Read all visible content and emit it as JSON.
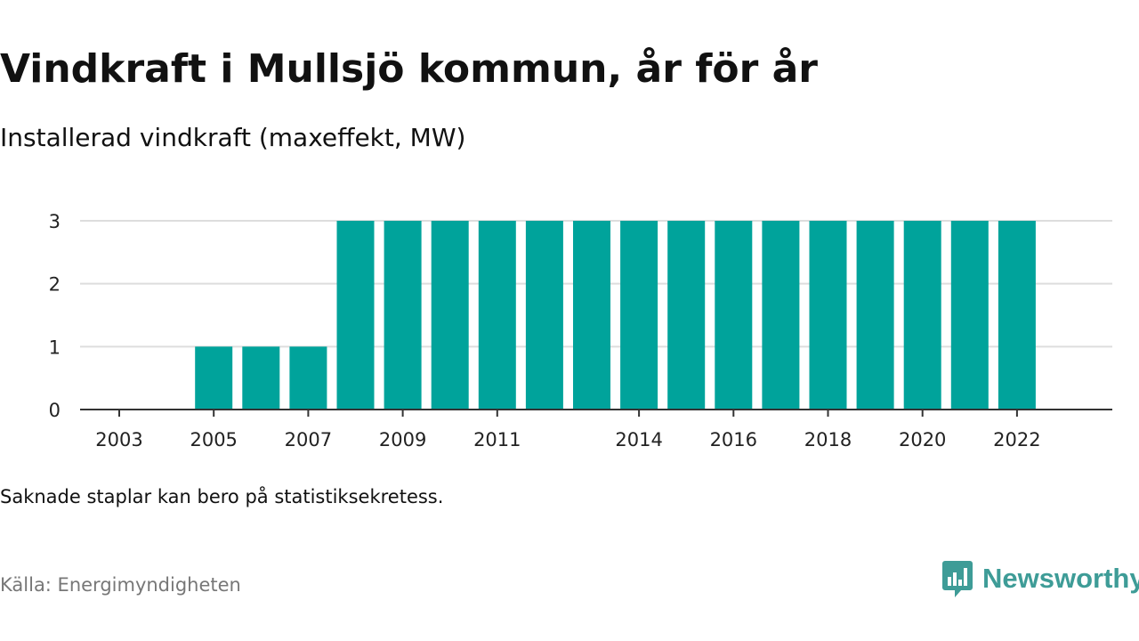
{
  "chart_data": {
    "type": "bar",
    "title": "Vindkraft i Mullsjö kommun, år för år",
    "subtitle": "Installerad vindkraft (maxeffekt, MW)",
    "xlabel": "",
    "ylabel": "",
    "categories": [
      2003,
      2004,
      2005,
      2006,
      2007,
      2008,
      2009,
      2010,
      2011,
      2012,
      2013,
      2014,
      2015,
      2016,
      2017,
      2018,
      2019,
      2020,
      2021,
      2022
    ],
    "values": [
      0,
      0,
      1,
      1,
      1,
      3,
      3,
      3,
      3,
      3,
      3,
      3,
      3,
      3,
      3,
      3,
      3,
      3,
      3,
      3
    ],
    "x_tick_labels": [
      2003,
      2005,
      2007,
      2009,
      2011,
      2014,
      2016,
      2018,
      2020,
      2022
    ],
    "y_ticks": [
      0,
      1,
      2,
      3
    ],
    "ylim": [
      0,
      3
    ],
    "grid": "horizontal",
    "bar_color": "#00a39b"
  },
  "note": "Saknade staplar kan bero på statistiksekretess.",
  "source": "Källa: Energimyndigheten",
  "brand": {
    "name": "Newsworthy",
    "icon": "newsworthy-logo-icon",
    "color": "#3e9c97"
  }
}
